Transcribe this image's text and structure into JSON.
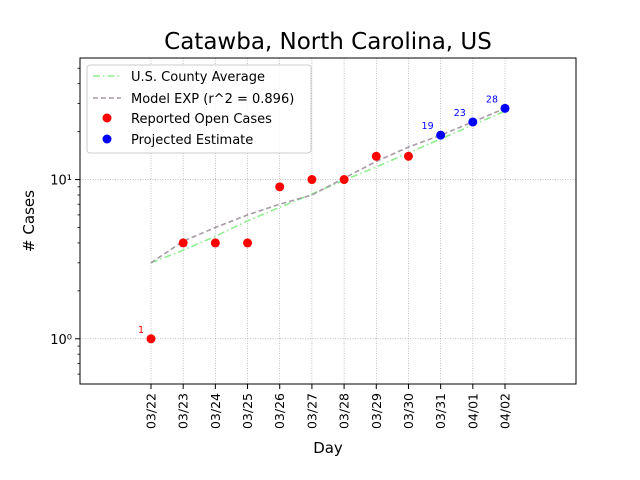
{
  "chart_data": {
    "type": "line",
    "title": "Catawba, North Carolina, US",
    "xlabel": "Day",
    "ylabel": "# Cases",
    "yscale": "log",
    "ylim": [
      0.52,
      58
    ],
    "y_ticks": [
      {
        "value": 1,
        "label": "10⁰"
      },
      {
        "value": 10,
        "label": "10¹"
      }
    ],
    "grid": true,
    "legend_position": "top-left",
    "categories": [
      "03/22",
      "03/23",
      "03/24",
      "03/25",
      "03/26",
      "03/27",
      "03/28",
      "03/29",
      "03/30",
      "03/31",
      "04/01",
      "04/02"
    ],
    "series": [
      {
        "name": "U.S. County Average",
        "style": "dash-dot",
        "color": "#90ee90",
        "x": [
          "03/22",
          "03/23",
          "03/24",
          "03/25",
          "03/26",
          "03/27",
          "03/28",
          "03/29",
          "03/30",
          "03/31",
          "04/01",
          "04/02"
        ],
        "values": [
          3.0,
          3.6,
          4.4,
          5.5,
          6.7,
          8.1,
          9.9,
          12.0,
          14.7,
          18.0,
          22.0,
          26.9
        ]
      },
      {
        "name": "Model EXP (r^2 = 0.896)",
        "style": "dashed",
        "color": "#a89aa6",
        "x": [
          "03/22",
          "03/23",
          "03/24",
          "03/25",
          "03/26",
          "03/27",
          "03/28",
          "03/29",
          "03/30",
          "03/31",
          "04/01",
          "04/02"
        ],
        "values": [
          3.0,
          4.1,
          5.0,
          6.0,
          7.0,
          8.0,
          10.2,
          13.0,
          16.0,
          19.0,
          23.0,
          28.0
        ]
      },
      {
        "name": "Reported Open Cases",
        "style": "markers",
        "color": "#ff0000",
        "x": [
          "03/22",
          "03/23",
          "03/24",
          "03/25",
          "03/26",
          "03/27",
          "03/28",
          "03/29",
          "03/30"
        ],
        "values": [
          1,
          4,
          4,
          4,
          9,
          10,
          10,
          14,
          14
        ]
      },
      {
        "name": "Projected Estimate",
        "style": "markers",
        "color": "#0000ff",
        "x": [
          "03/31",
          "04/01",
          "04/02"
        ],
        "values": [
          19,
          23,
          28
        ]
      }
    ],
    "annotations": [
      {
        "text": "1",
        "x": "03/22",
        "y": 1,
        "color": "#ff0000"
      },
      {
        "text": "19",
        "x": "03/31",
        "y": 19,
        "color": "#0000ff"
      },
      {
        "text": "23",
        "x": "04/01",
        "y": 23,
        "color": "#0000ff"
      },
      {
        "text": "28",
        "x": "04/02",
        "y": 28,
        "color": "#0000ff"
      }
    ]
  }
}
